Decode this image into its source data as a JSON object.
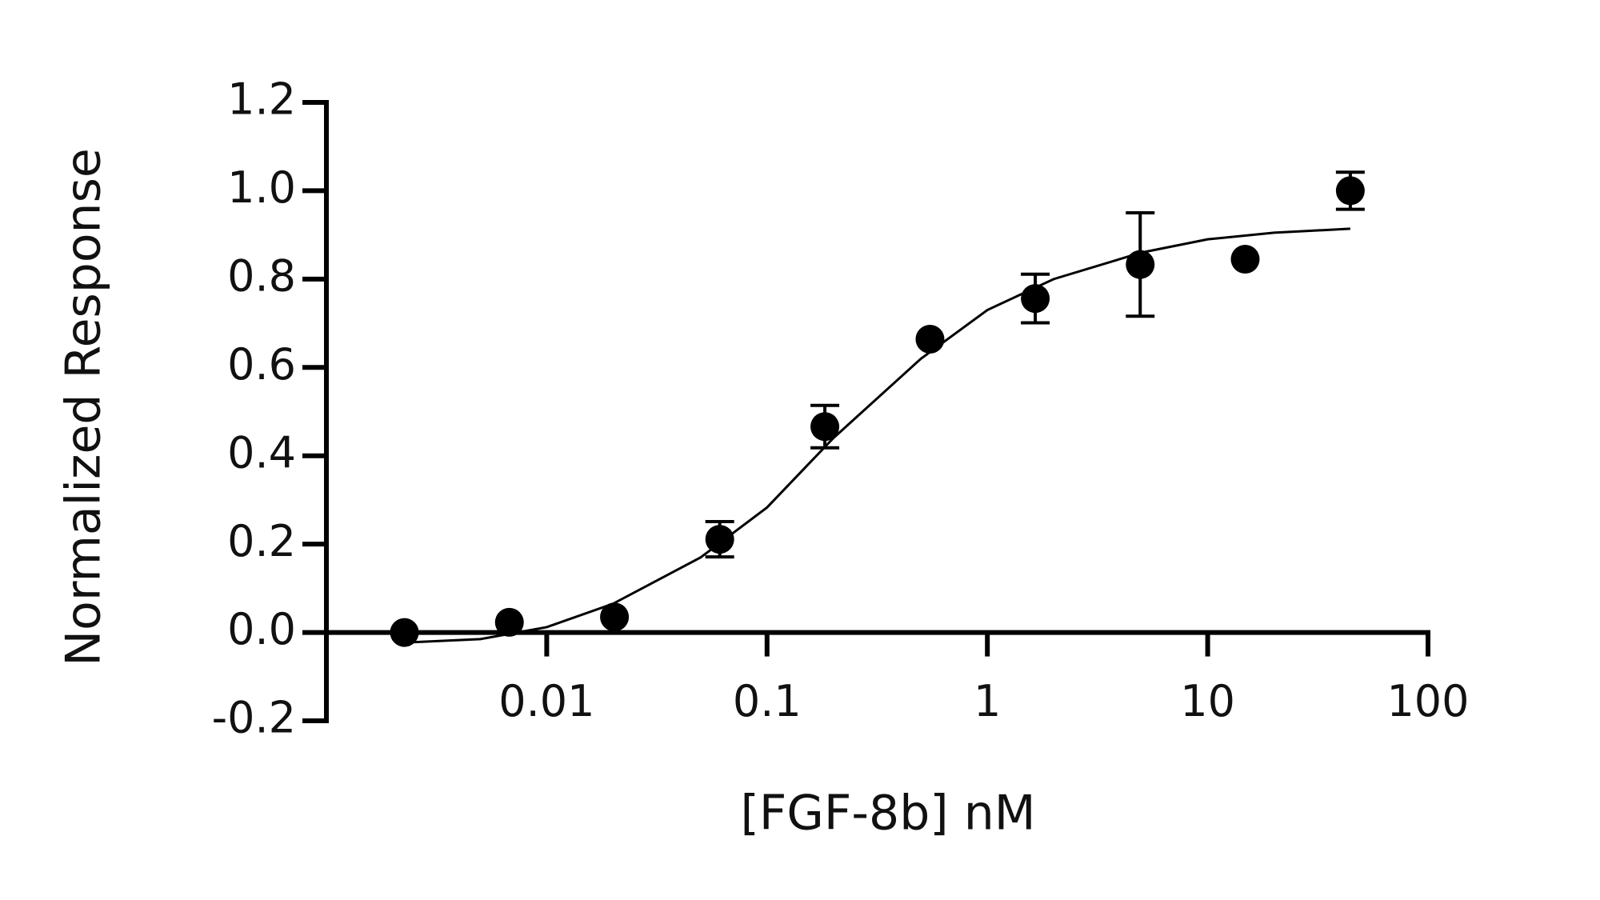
{
  "chart_data": {
    "type": "scatter",
    "x_label": "[FGF-8b] nM",
    "y_label": "Normalized Response",
    "xscale": "log",
    "xlim": [
      0.001,
      100
    ],
    "xticks": [
      0.01,
      0.1,
      1,
      10,
      100
    ],
    "ylim": [
      -0.2,
      1.2
    ],
    "yticks": [
      -0.2,
      {
        "value": 0,
        "label": "0.0"
      },
      0.2,
      0.4,
      0.6,
      0.8,
      {
        "value": 1,
        "label": "1.0"
      },
      1.2
    ],
    "series": [
      {
        "style": "marker",
        "color": "#000000",
        "x": [
          0.00226,
          0.00677,
          0.0203,
          0.061,
          0.183,
          0.549,
          1.65,
          4.94,
          14.8,
          44.4
        ],
        "values": [
          0.0,
          0.023,
          0.035,
          0.211,
          0.466,
          0.664,
          0.756,
          0.833,
          0.845,
          1.0
        ],
        "errors": [
          null,
          null,
          null,
          0.04,
          0.048,
          null,
          0.055,
          0.117,
          null,
          0.042
        ]
      },
      {
        "style": "line",
        "color": "#000000",
        "x": [
          0.00226,
          0.005,
          0.01,
          0.02,
          0.05,
          0.1,
          0.2,
          0.5,
          1,
          2,
          5,
          10,
          20,
          44.4
        ],
        "values": [
          -0.023,
          -0.015,
          0.012,
          0.065,
          0.17,
          0.283,
          0.44,
          0.62,
          0.73,
          0.8,
          0.86,
          0.89,
          0.905,
          0.914
        ]
      }
    ]
  }
}
